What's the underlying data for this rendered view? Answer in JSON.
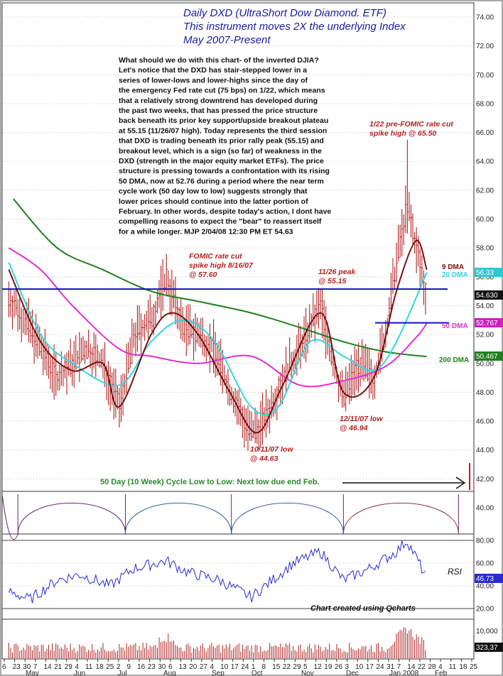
{
  "title_lines": [
    "Daily DXD (UltraShort Dow Diamond. ETF)",
    "This instrument moves 2X the underlying Index",
    "May 2007-Present"
  ],
  "commentary_lines": [
    "What should we do with this chart- of the inverted DJIA?",
    "Let's notice that the DXD has stair-stepped lower in a",
    "series of lower-lows and lower-highs since the day of",
    "the emergency Fed rate cut (75 bps) on 1/22, which means",
    "that a relatively strong downtrend has developed during",
    "the past two weeks, that has pressed the price structure",
    "back beneath its prior key support/upside breakout plateau",
    "at 55.15 (11/26/07 high). Today represents the third session",
    "that DXD is trading beneath its prior rally peak (55.15) and",
    "breakout level, which is a sign (so far) of weakness in the",
    "DXD (strength in the major equity market ETFs). The price",
    "structure is pressing towards a confrontation with its rising",
    "50 DMA, now at 52.76 during a period where the near term",
    "cycle work (50 day low to low) suggests strongly that",
    "lower prices should continue into the latter portion of",
    "February. In other words, despite today's action, I dont have",
    "compelling reasons to expect the \"bear\" to reassert itself",
    "for a while longer.  MJP  2/04/08  12:30 PM ET  54.63"
  ],
  "annotations": {
    "fomic_aug": [
      "FOMIC rate cut",
      "spike high 8/16/07",
      "@ 57.60"
    ],
    "peak_nov": [
      "11/26 peak",
      "@ 55.15"
    ],
    "fomic_jan": [
      "1/22 pre-FOMIC rate cut",
      "spike high @ 65.50"
    ],
    "low_oct": [
      "10/11/07 low",
      "@ 44.63"
    ],
    "low_dec": [
      "12/11/07 low",
      "@ 46.94"
    ],
    "cycle_note": "50 Day (10 Week) Cycle Low to Low: Next low due end Feb.",
    "credit": "Chart created using Qcharts"
  },
  "ma_labels": {
    "dma9": "9 DMA",
    "dma20": "20 DMA",
    "dma50": "50 DMA",
    "dma200": "200 DMA"
  },
  "badges": {
    "price": "54.630",
    "dma20": "56.33",
    "dma50": "52.767",
    "dma200": "50.467",
    "rsi": "46.73",
    "volume": "323,37"
  },
  "rsi_label": "RSI",
  "price_axis_ticks": [
    "74.00",
    "72.00",
    "70.00",
    "68.00",
    "66.00",
    "64.00",
    "62.00",
    "60.00",
    "58.00",
    "56.00",
    "54.00",
    "52.00",
    "50.00",
    "48.00",
    "46.00",
    "44.00",
    "42.00",
    "40.00"
  ],
  "rsi_axis_ticks": [
    "80.00",
    "60.00",
    "40.00",
    "20.00"
  ],
  "volume_axis_tick": "10,000",
  "x_day_ticks": [
    "6",
    "23",
    "30",
    "7",
    "14",
    "21",
    "29",
    "4",
    "11",
    "18",
    "25",
    "2",
    "9",
    "16",
    "23",
    "30",
    "6",
    "13",
    "20",
    "27",
    "4",
    "10",
    "17",
    "24",
    "1",
    "8",
    "15",
    "22",
    "29",
    "5",
    "12",
    "19",
    "26",
    "3",
    "10",
    "17",
    "24",
    "31",
    "7",
    "14",
    "22",
    "28",
    "4",
    "11",
    "18",
    "25"
  ],
  "x_month_labels": [
    "May",
    "Jun",
    "Jul",
    "Aug",
    "Sep",
    "Oct",
    "Nov",
    "Dec",
    "Jan 2008",
    "Feb"
  ],
  "colors": {
    "title": "#1a1aa0",
    "price_bars": "#b22222",
    "dma9": "#7a1010",
    "dma20": "#30d8e0",
    "dma50": "#e030d0",
    "dma200": "#208020",
    "support_line": "#1010c0",
    "annotation": "#b22222",
    "cycle_arc": "#5a1a4a",
    "rsi_line": "#2a2ad0",
    "volume": "#b22222"
  },
  "chart_data": {
    "type": "line",
    "title": "Daily DXD (UltraShort Dow Diamond. ETF)",
    "ylim": [
      39,
      75
    ],
    "rsi_ylim": [
      15,
      85
    ],
    "key_levels": [
      {
        "label": "11/26 peak",
        "value": 55.15
      },
      {
        "label": "50 DMA",
        "value": 52.76
      }
    ],
    "annotated_points": [
      {
        "date": "2007-08-16",
        "label": "FOMIC rate cut spike high",
        "value": 57.6
      },
      {
        "date": "2007-10-11",
        "label": "10/11/07 low",
        "value": 44.63
      },
      {
        "date": "2007-11-26",
        "label": "11/26 peak",
        "value": 55.15
      },
      {
        "date": "2007-12-11",
        "label": "12/11/07 low",
        "value": 46.94
      },
      {
        "date": "2008-01-22",
        "label": "1/22 pre-FOMIC rate cut spike high",
        "value": 65.5
      },
      {
        "date": "2008-02-04",
        "label": "last",
        "value": 54.63
      }
    ],
    "price_path": [
      {
        "date": "2007-05-04",
        "value": 54.5
      },
      {
        "date": "2007-05-15",
        "value": 53.0
      },
      {
        "date": "2007-05-25",
        "value": 51.0
      },
      {
        "date": "2007-06-05",
        "value": 49.0
      },
      {
        "date": "2007-06-15",
        "value": 50.0
      },
      {
        "date": "2007-06-25",
        "value": 51.0
      },
      {
        "date": "2007-07-05",
        "value": 50.0
      },
      {
        "date": "2007-07-16",
        "value": 47.0
      },
      {
        "date": "2007-07-26",
        "value": 52.0
      },
      {
        "date": "2007-08-06",
        "value": 53.0
      },
      {
        "date": "2007-08-16",
        "value": 56.0
      },
      {
        "date": "2007-08-27",
        "value": 52.5
      },
      {
        "date": "2007-09-06",
        "value": 52.0
      },
      {
        "date": "2007-09-17",
        "value": 51.0
      },
      {
        "date": "2007-09-27",
        "value": 48.0
      },
      {
        "date": "2007-10-11",
        "value": 45.0
      },
      {
        "date": "2007-10-22",
        "value": 46.5
      },
      {
        "date": "2007-11-01",
        "value": 49.0
      },
      {
        "date": "2007-11-12",
        "value": 51.0
      },
      {
        "date": "2007-11-26",
        "value": 54.0
      },
      {
        "date": "2007-12-04",
        "value": 50.0
      },
      {
        "date": "2007-12-11",
        "value": 47.5
      },
      {
        "date": "2007-12-20",
        "value": 50.0
      },
      {
        "date": "2007-12-31",
        "value": 49.0
      },
      {
        "date": "2008-01-08",
        "value": 52.0
      },
      {
        "date": "2008-01-15",
        "value": 57.0
      },
      {
        "date": "2008-01-22",
        "value": 61.0
      },
      {
        "date": "2008-01-28",
        "value": 58.0
      },
      {
        "date": "2008-02-04",
        "value": 54.63
      }
    ],
    "dma9": [
      {
        "date": "2007-05-04",
        "value": 56.5
      },
      {
        "date": "2007-05-25",
        "value": 51.5
      },
      {
        "date": "2007-06-15",
        "value": 49.5
      },
      {
        "date": "2007-07-05",
        "value": 50.0
      },
      {
        "date": "2007-07-16",
        "value": 47.0
      },
      {
        "date": "2007-08-06",
        "value": 52.0
      },
      {
        "date": "2007-08-20",
        "value": 53.5
      },
      {
        "date": "2007-09-06",
        "value": 52.0
      },
      {
        "date": "2007-09-27",
        "value": 48.0
      },
      {
        "date": "2007-10-15",
        "value": 45.2
      },
      {
        "date": "2007-11-01",
        "value": 48.5
      },
      {
        "date": "2007-11-26",
        "value": 53.5
      },
      {
        "date": "2007-12-11",
        "value": 48.0
      },
      {
        "date": "2007-12-31",
        "value": 49.0
      },
      {
        "date": "2008-01-15",
        "value": 55.0
      },
      {
        "date": "2008-01-28",
        "value": 58.5
      },
      {
        "date": "2008-02-04",
        "value": 56.5
      }
    ],
    "dma20": [
      {
        "date": "2007-05-04",
        "value": 57.0
      },
      {
        "date": "2007-05-25",
        "value": 52.0
      },
      {
        "date": "2007-06-15",
        "value": 50.0
      },
      {
        "date": "2007-07-16",
        "value": 48.5
      },
      {
        "date": "2007-08-06",
        "value": 51.5
      },
      {
        "date": "2007-08-27",
        "value": 53.0
      },
      {
        "date": "2007-09-17",
        "value": 51.5
      },
      {
        "date": "2007-10-11",
        "value": 47.0
      },
      {
        "date": "2007-10-29",
        "value": 47.0
      },
      {
        "date": "2007-11-19",
        "value": 51.5
      },
      {
        "date": "2007-12-11",
        "value": 50.5
      },
      {
        "date": "2007-12-31",
        "value": 49.5
      },
      {
        "date": "2008-01-15",
        "value": 51.5
      },
      {
        "date": "2008-02-04",
        "value": 56.3
      }
    ],
    "dma50": [
      {
        "date": "2007-05-04",
        "value": 58.0
      },
      {
        "date": "2007-05-25",
        "value": 56.5
      },
      {
        "date": "2007-06-15",
        "value": 54.0
      },
      {
        "date": "2007-07-16",
        "value": 51.0
      },
      {
        "date": "2007-08-06",
        "value": 50.5
      },
      {
        "date": "2007-09-06",
        "value": 50.0
      },
      {
        "date": "2007-10-11",
        "value": 50.5
      },
      {
        "date": "2007-11-12",
        "value": 48.5
      },
      {
        "date": "2007-12-11",
        "value": 48.8
      },
      {
        "date": "2008-01-08",
        "value": 49.8
      },
      {
        "date": "2008-01-28",
        "value": 51.8
      },
      {
        "date": "2008-02-04",
        "value": 52.76
      }
    ],
    "dma200": [
      {
        "date": "2007-05-07",
        "value": 61.4
      },
      {
        "date": "2007-06-05",
        "value": 58.0
      },
      {
        "date": "2007-07-05",
        "value": 56.5
      },
      {
        "date": "2007-08-06",
        "value": 55.0
      },
      {
        "date": "2007-09-06",
        "value": 54.3
      },
      {
        "date": "2007-10-11",
        "value": 53.5
      },
      {
        "date": "2007-11-12",
        "value": 52.5
      },
      {
        "date": "2007-12-11",
        "value": 51.5
      },
      {
        "date": "2008-01-08",
        "value": 50.8
      },
      {
        "date": "2008-02-04",
        "value": 50.47
      }
    ],
    "rsi": [
      {
        "date": "2007-05-04",
        "value": 35
      },
      {
        "date": "2007-05-18",
        "value": 28
      },
      {
        "date": "2007-06-05",
        "value": 45
      },
      {
        "date": "2007-06-20",
        "value": 50
      },
      {
        "date": "2007-07-10",
        "value": 40
      },
      {
        "date": "2007-07-25",
        "value": 55
      },
      {
        "date": "2007-08-16",
        "value": 62
      },
      {
        "date": "2007-08-30",
        "value": 52
      },
      {
        "date": "2007-09-20",
        "value": 45
      },
      {
        "date": "2007-10-11",
        "value": 30
      },
      {
        "date": "2007-10-25",
        "value": 45
      },
      {
        "date": "2007-11-08",
        "value": 60
      },
      {
        "date": "2007-11-26",
        "value": 70
      },
      {
        "date": "2007-12-11",
        "value": 45
      },
      {
        "date": "2007-12-28",
        "value": 55
      },
      {
        "date": "2008-01-15",
        "value": 70
      },
      {
        "date": "2008-01-22",
        "value": 80
      },
      {
        "date": "2008-01-30",
        "value": 60
      },
      {
        "date": "2008-02-04",
        "value": 46.73
      }
    ]
  }
}
